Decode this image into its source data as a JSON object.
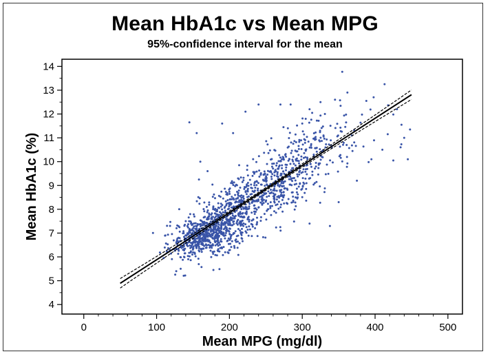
{
  "chart_data": {
    "type": "scatter",
    "title": "Mean HbA1c vs Mean MPG",
    "subtitle": "95%-confidence interval for the mean",
    "xlabel": "Mean MPG (mg/dl)",
    "ylabel": "Mean HbA1c (%)",
    "xlim": [
      -30,
      520
    ],
    "ylim": [
      3.6,
      14.3
    ],
    "x_ticks": [
      0,
      100,
      200,
      300,
      400,
      500
    ],
    "y_ticks": [
      4,
      5,
      6,
      7,
      8,
      9,
      10,
      11,
      12,
      13,
      14
    ],
    "grid": false,
    "point_color": "#3a55a8",
    "regression": {
      "x_range": [
        50,
        450
      ],
      "slope": 0.0198,
      "intercept": 3.9,
      "ci_halfwidth_mid": 0.06,
      "ci_halfwidth_ends": 0.2
    },
    "clusters": [
      {
        "cx": 165,
        "cy": 6.9,
        "sx": 22,
        "sy": 0.45,
        "n": 500,
        "rho": 0.45
      },
      {
        "cx": 205,
        "cy": 7.8,
        "sx": 35,
        "sy": 0.85,
        "n": 450,
        "rho": 0.6
      },
      {
        "cx": 265,
        "cy": 9.2,
        "sx": 35,
        "sy": 1.0,
        "n": 400,
        "rho": 0.6
      },
      {
        "cx": 320,
        "cy": 10.4,
        "sx": 40,
        "sy": 0.9,
        "n": 120,
        "rho": 0.5
      }
    ],
    "outliers": [
      [
        145,
        11.65
      ],
      [
        155,
        11.2
      ],
      [
        240,
        12.4
      ],
      [
        270,
        12.4
      ],
      [
        310,
        12.2
      ],
      [
        325,
        12.5
      ],
      [
        345,
        12.6
      ],
      [
        362,
        12.9
      ],
      [
        388,
        12.55
      ],
      [
        398,
        12.7
      ],
      [
        413,
        13.25
      ],
      [
        430,
        12.2
      ],
      [
        440,
        11.0
      ],
      [
        448,
        11.35
      ],
      [
        435,
        10.6
      ],
      [
        425,
        10.05
      ],
      [
        445,
        10.1
      ],
      [
        395,
        10.1
      ],
      [
        410,
        10.5
      ],
      [
        368,
        11.1
      ],
      [
        375,
        9.2
      ],
      [
        350,
        8.3
      ],
      [
        338,
        7.3
      ],
      [
        310,
        7.4
      ],
      [
        127,
        5.4
      ],
      [
        133,
        5.5
      ],
      [
        178,
        5.45
      ],
      [
        112,
        6.9
      ],
      [
        118,
        6.3
      ],
      [
        170,
        9.6
      ],
      [
        160,
        10.0
      ],
      [
        190,
        11.6
      ],
      [
        205,
        11.2
      ],
      [
        222,
        12.1
      ],
      [
        284,
        12.4
      ],
      [
        300,
        11.6
      ]
    ]
  }
}
